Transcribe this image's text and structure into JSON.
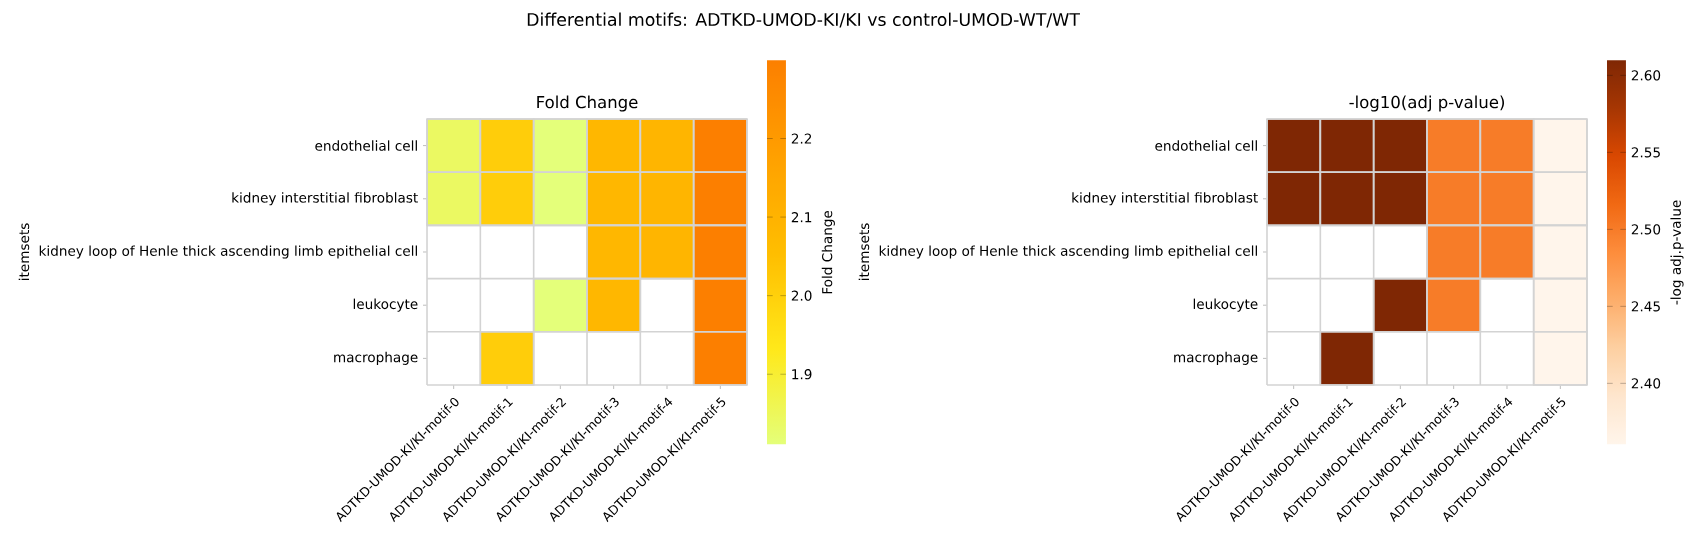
{
  "chart_data": [
    {
      "type": "heatmap",
      "title": "Fold Change",
      "ylabel": "itemsets",
      "clabel": "Fold Change",
      "annotations": [
        "Differential motifs: ADTKD-UMOD-KI/KI vs control-UMOD-WT/WT"
      ],
      "categories": [
        "ADTKD-UMOD-KI/KI-motif-0",
        "ADTKD-UMOD-KI/KI-motif-1",
        "ADTKD-UMOD-KI/KI-motif-2",
        "ADTKD-UMOD-KI/KI-motif-3",
        "ADTKD-UMOD-KI/KI-motif-4",
        "ADTKD-UMOD-KI/KI-motif-5"
      ],
      "y_categories": [
        "endothelial cell",
        "kidney interstitial fibroblast",
        "kidney loop of Henle thick ascending limb epithelial cell",
        "leukocyte",
        "macrophage"
      ],
      "cells": [
        [
          1.84,
          2.01,
          1.81,
          2.08,
          2.09,
          2.3
        ],
        [
          1.84,
          2.01,
          1.81,
          2.08,
          2.09,
          2.3
        ],
        [
          null,
          null,
          null,
          2.08,
          2.09,
          2.3
        ],
        [
          null,
          null,
          1.81,
          2.08,
          null,
          2.3
        ],
        [
          null,
          2.01,
          null,
          null,
          null,
          2.3
        ]
      ],
      "clim": [
        1.81,
        2.3
      ],
      "cticks": [
        1.9,
        {
          "value": 2,
          "label": "2.0"
        },
        2.1,
        2.2
      ]
    },
    {
      "type": "heatmap",
      "title": "-log10(adj p-value)",
      "ylabel": "itemsets",
      "clabel": "-log adj.p-value",
      "categories": [
        "ADTKD-UMOD-KI/KI-motif-0",
        "ADTKD-UMOD-KI/KI-motif-1",
        "ADTKD-UMOD-KI/KI-motif-2",
        "ADTKD-UMOD-KI/KI-motif-3",
        "ADTKD-UMOD-KI/KI-motif-4",
        "ADTKD-UMOD-KI/KI-motif-5"
      ],
      "y_categories": [
        "endothelial cell",
        "kidney interstitial fibroblast",
        "kidney loop of Henle thick ascending limb epithelial cell",
        "leukocyte",
        "macrophage"
      ],
      "cells": [
        [
          2.61,
          2.61,
          2.61,
          2.5,
          2.5,
          2.36
        ],
        [
          2.61,
          2.61,
          2.61,
          2.5,
          2.5,
          2.36
        ],
        [
          null,
          null,
          null,
          2.5,
          2.5,
          2.36
        ],
        [
          null,
          null,
          2.61,
          2.5,
          null,
          2.36
        ],
        [
          null,
          2.61,
          null,
          null,
          null,
          2.36
        ]
      ],
      "clim": [
        2.36,
        2.61
      ],
      "cticks": [
        {
          "value": 2.4,
          "label": "2.40"
        },
        2.45,
        {
          "value": 2.5,
          "label": "2.50"
        },
        2.55,
        {
          "value": 2.6,
          "label": "2.60"
        }
      ]
    }
  ]
}
